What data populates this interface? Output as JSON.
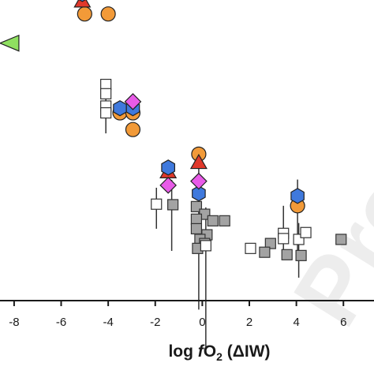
{
  "chart_data": {
    "type": "scatter",
    "title": "",
    "xlabel": {
      "prefix": "log ",
      "italic": "f",
      "main": "O",
      "sub": "2",
      "suffix": " (ΔIW)"
    },
    "ylabel": "",
    "xlim": [
      -8.6,
      7.3
    ],
    "ylim": [
      0,
      1.1
    ],
    "xticks": [
      -8,
      -6,
      -4,
      -2,
      0,
      2,
      4,
      6
    ],
    "xtick_labels": [
      "-8",
      "-6",
      "-4",
      "-2",
      "0",
      "2",
      "4",
      "6"
    ],
    "grid": false,
    "legend": "none",
    "watermark": "Preprint",
    "colors": {
      "blue_hexagon": "#3f79dd",
      "orange_circle": "#f29a38",
      "red_triangle": "#e0382b",
      "magenta_diamond": "#e85be8",
      "green_triangle": "#8fe060",
      "open_square": "#ffffff",
      "gray_square": "#a3a3a3",
      "stroke": "#222222",
      "errorbar": "#333333"
    },
    "series": [
      {
        "marker": "gray_square",
        "points": [
          {
            "x": -1.25,
            "y": 0.351
          },
          {
            "x": -0.25,
            "y": 0.344
          },
          {
            "x": 0.1,
            "y": 0.316
          },
          {
            "x": -0.25,
            "y": 0.298
          },
          {
            "x": 0.95,
            "y": 0.292
          },
          {
            "x": 0.45,
            "y": 0.292
          },
          {
            "x": -0.25,
            "y": 0.263
          },
          {
            "x": 0.2,
            "y": 0.241
          },
          {
            "x": -0.1,
            "y": 0.224
          },
          {
            "x": 0.1,
            "y": 0.209
          },
          {
            "x": -0.2,
            "y": 0.191
          },
          {
            "x": 2.9,
            "y": 0.209
          },
          {
            "x": 2.65,
            "y": 0.177
          },
          {
            "x": 3.6,
            "y": 0.168
          },
          {
            "x": 5.9,
            "y": 0.224
          },
          {
            "x": 4.2,
            "y": 0.165
          }
        ]
      },
      {
        "marker": "open_square",
        "points": [
          {
            "x": -4.1,
            "y": 0.791
          },
          {
            "x": -4.1,
            "y": 0.757
          },
          {
            "x": -4.1,
            "y": 0.712,
            "err_lo": 0.1,
            "err_hi": 0.05
          },
          {
            "x": -4.1,
            "y": 0.687
          },
          {
            "x": -1.95,
            "y": 0.353,
            "err_lo": 0.09,
            "err_hi": 0.06
          },
          {
            "x": 0.15,
            "y": 0.201,
            "err_lo": 0.37,
            "err_hi": 0.14
          },
          {
            "x": 2.05,
            "y": 0.191
          },
          {
            "x": 3.45,
            "y": 0.246
          },
          {
            "x": 3.45,
            "y": 0.227,
            "err_lo": 0.05,
            "err_hi": 0.12
          },
          {
            "x": 4.1,
            "y": 0.224,
            "err_lo": 0.14,
            "err_hi": 0.06
          },
          {
            "x": 4.4,
            "y": 0.249
          }
        ]
      },
      {
        "marker": "orange_circle",
        "points": [
          {
            "x": -5.0,
            "y": 1.049
          },
          {
            "x": -4.0,
            "y": 1.049
          },
          {
            "x": -3.5,
            "y": 0.687
          },
          {
            "x": -2.95,
            "y": 0.687
          },
          {
            "x": -2.95,
            "y": 0.626
          },
          {
            "x": -0.15,
            "y": 0.536
          },
          {
            "x": 4.05,
            "y": 0.347
          }
        ]
      },
      {
        "marker": "red_triangle",
        "points": [
          {
            "x": -5.1,
            "y": 1.096
          },
          {
            "x": -1.45,
            "y": 0.471
          },
          {
            "x": -0.15,
            "y": 0.505
          }
        ]
      },
      {
        "marker": "blue_hexagon",
        "points": [
          {
            "x": -5.1,
            "y": 1.122
          },
          {
            "x": -3.5,
            "y": 0.704
          },
          {
            "x": -2.95,
            "y": 0.704
          },
          {
            "x": -1.45,
            "y": 0.487
          },
          {
            "x": -0.15,
            "y": 0.392
          },
          {
            "x": 4.05,
            "y": 0.383
          }
        ]
      },
      {
        "marker": "magenta_diamond",
        "points": [
          {
            "x": -2.95,
            "y": 0.728
          },
          {
            "x": -1.45,
            "y": 0.422
          },
          {
            "x": -0.15,
            "y": 0.437
          }
        ]
      },
      {
        "marker": "green_triangle",
        "points": [
          {
            "x": -8.2,
            "y": 0.942
          }
        ]
      }
    ],
    "extra_errorbars": [
      {
        "x": -1.3,
        "y": 0.392,
        "err_lo": 0.21,
        "err_hi": 0.05
      },
      {
        "x": -0.15,
        "y": 0.437,
        "err_lo": 0.47,
        "err_hi": 0.08
      },
      {
        "x": 4.05,
        "y": 0.383,
        "err_lo": 0.23,
        "err_hi": 0.06
      }
    ]
  }
}
